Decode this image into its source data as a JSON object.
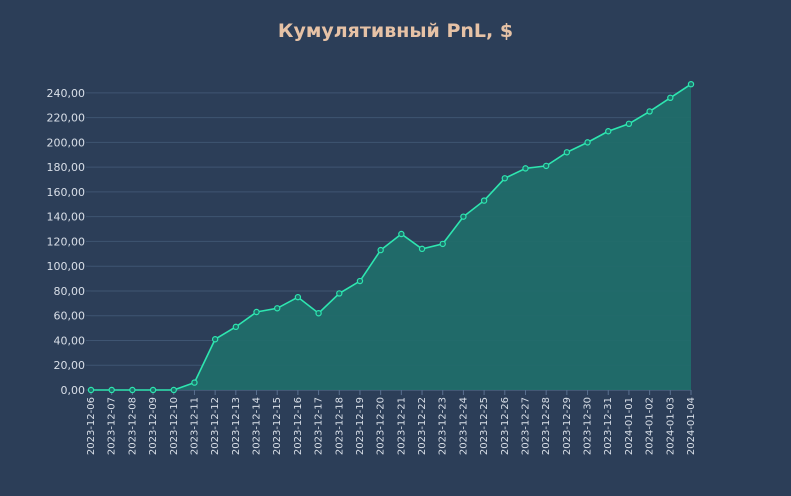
{
  "chart_data": {
    "type": "area",
    "title": "Кумулятивный PnL, $",
    "xlabel": "",
    "ylabel": "",
    "x": [
      "2023-12-06",
      "2023-12-07",
      "2023-12-08",
      "2023-12-09",
      "2023-12-10",
      "2023-12-11",
      "2023-12-12",
      "2023-12-13",
      "2023-12-14",
      "2023-12-15",
      "2023-12-16",
      "2023-12-17",
      "2023-12-18",
      "2023-12-19",
      "2023-12-20",
      "2023-12-21",
      "2023-12-22",
      "2023-12-23",
      "2023-12-24",
      "2023-12-25",
      "2023-12-26",
      "2023-12-27",
      "2023-12-28",
      "2023-12-29",
      "2023-12-30",
      "2023-12-31",
      "2024-01-01",
      "2024-01-02",
      "2024-01-03",
      "2024-01-04"
    ],
    "series": [
      {
        "values": [
          0,
          0,
          0,
          0,
          0,
          6,
          41,
          51,
          63,
          66,
          75,
          62,
          78,
          88,
          113,
          126,
          114,
          118,
          140,
          153,
          171,
          179,
          181,
          192,
          200,
          209,
          215,
          225,
          236,
          247
        ]
      }
    ],
    "yticks": [
      "0,00",
      "20,00",
      "40,00",
      "60,00",
      "80,00",
      "100,00",
      "120,00",
      "140,00",
      "160,00",
      "180,00",
      "200,00",
      "220,00",
      "240,00"
    ],
    "ylim": [
      0,
      252
    ],
    "grid": true,
    "colors": {
      "background": "#2c3e58",
      "line": "#2ee6b0",
      "fill": "#1f6e6a",
      "grid": "#3f5572",
      "title": "#e6c2a6",
      "text": "#d9dfe8"
    }
  }
}
